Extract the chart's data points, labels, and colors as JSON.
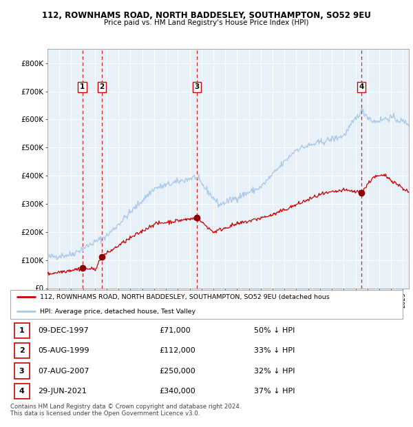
{
  "title1": "112, ROWNHAMS ROAD, NORTH BADDESLEY, SOUTHAMPTON, SO52 9EU",
  "title2": "Price paid vs. HM Land Registry's House Price Index (HPI)",
  "ylim": [
    0,
    850000
  ],
  "yticks": [
    0,
    100000,
    200000,
    300000,
    400000,
    500000,
    600000,
    700000,
    800000
  ],
  "ytick_labels": [
    "£0",
    "£100K",
    "£200K",
    "£300K",
    "£400K",
    "£500K",
    "£600K",
    "£700K",
    "£800K"
  ],
  "hpi_color": "#a8c8e8",
  "price_color": "#cc0000",
  "plot_bg": "#e8f0f8",
  "grid_color": "#ffffff",
  "dashed_line_color": "#cc0000",
  "sale_points": [
    {
      "label": 1,
      "date_x": 1997.94,
      "price": 71000
    },
    {
      "label": 2,
      "date_x": 1999.59,
      "price": 112000
    },
    {
      "label": 3,
      "date_x": 2007.6,
      "price": 250000
    },
    {
      "label": 4,
      "date_x": 2021.49,
      "price": 340000
    }
  ],
  "legend1": "112, ROWNHAMS ROAD, NORTH BADDESLEY, SOUTHAMPTON, SO52 9EU (detached hous",
  "legend2": "HPI: Average price, detached house, Test Valley",
  "table_rows": [
    {
      "num": 1,
      "date": "09-DEC-1997",
      "price": "£71,000",
      "note": "50% ↓ HPI"
    },
    {
      "num": 2,
      "date": "05-AUG-1999",
      "price": "£112,000",
      "note": "33% ↓ HPI"
    },
    {
      "num": 3,
      "date": "07-AUG-2007",
      "price": "£250,000",
      "note": "32% ↓ HPI"
    },
    {
      "num": 4,
      "date": "29-JUN-2021",
      "price": "£340,000",
      "note": "37% ↓ HPI"
    }
  ],
  "footer": "Contains HM Land Registry data © Crown copyright and database right 2024.\nThis data is licensed under the Open Government Licence v3.0.",
  "xmin": 1995.0,
  "xmax": 2025.5
}
